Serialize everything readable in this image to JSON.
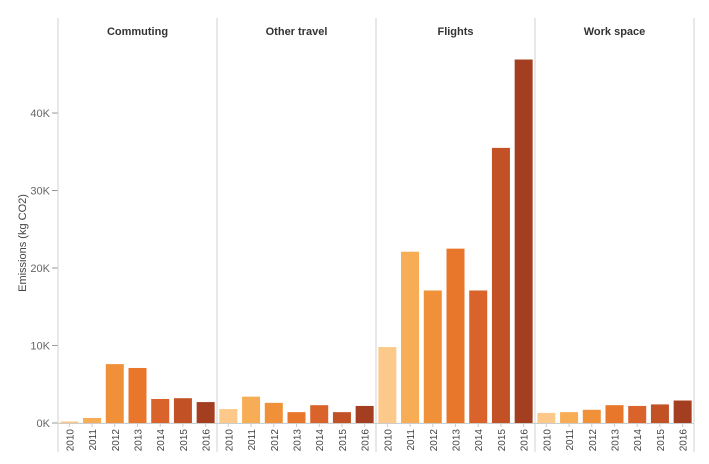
{
  "chart_data": {
    "type": "bar",
    "title": "",
    "xlabel": "",
    "ylabel": "Emissions (kg CO2)",
    "ylim": [
      0,
      49000
    ],
    "yticks": [
      0,
      10000,
      20000,
      30000,
      40000
    ],
    "ytick_labels": [
      "0K",
      "10K",
      "20K",
      "30K",
      "40K"
    ],
    "grid": false,
    "legend": "none",
    "categories": [
      "2010",
      "2011",
      "2012",
      "2013",
      "2014",
      "2015",
      "2016"
    ],
    "year_colors": {
      "2010": "#fdc98a",
      "2011": "#f6ad55",
      "2012": "#f0913a",
      "2013": "#e8762b",
      "2014": "#d9632a",
      "2015": "#c25226",
      "2016": "#a33f20"
    },
    "panels": [
      {
        "name": "Commuting",
        "values": [
          200,
          650,
          7600,
          7100,
          3100,
          3200,
          2700
        ]
      },
      {
        "name": "Other travel",
        "values": [
          1800,
          3400,
          2600,
          1400,
          2300,
          1400,
          2200
        ]
      },
      {
        "name": "Flights",
        "values": [
          9800,
          22100,
          17100,
          22500,
          17100,
          35500,
          46900
        ]
      },
      {
        "name": "Work space",
        "values": [
          1300,
          1400,
          1700,
          2300,
          2200,
          2400,
          2900
        ]
      }
    ]
  }
}
